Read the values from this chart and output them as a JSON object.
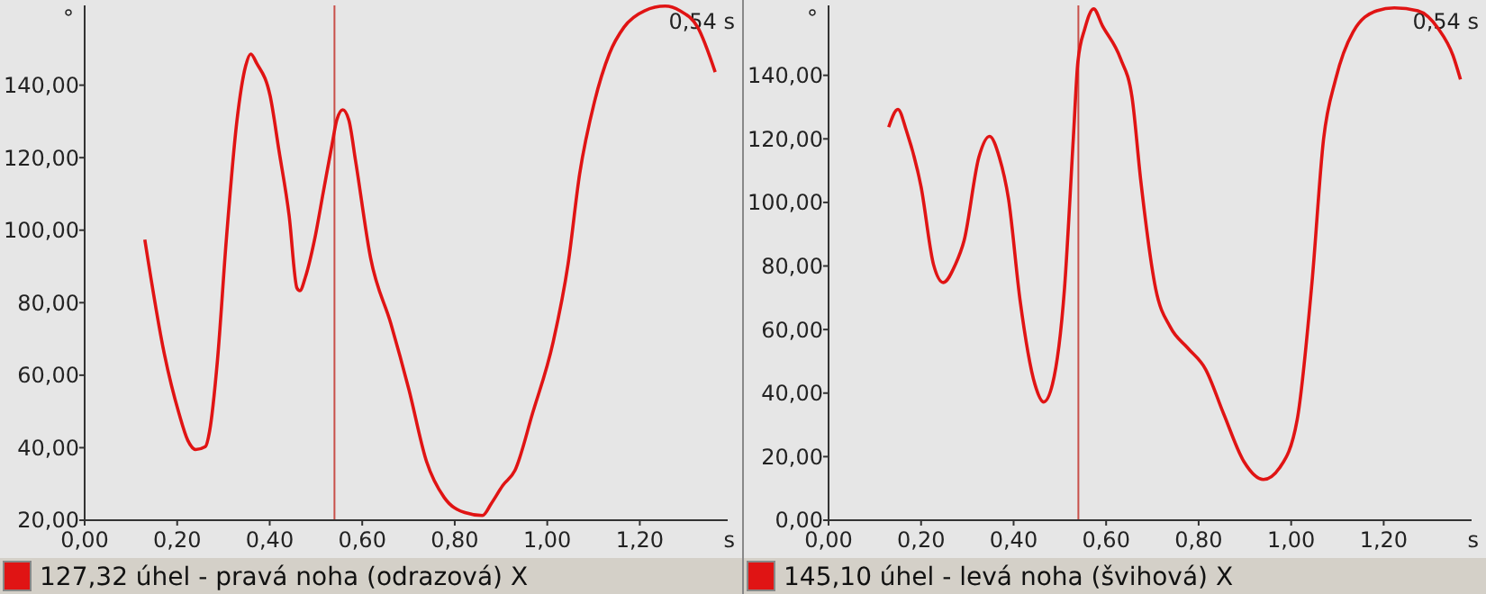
{
  "chart_data": [
    {
      "type": "line",
      "xlabel": "s",
      "ylabel": "°",
      "xlim": [
        0,
        1.39
      ],
      "ylim": [
        20,
        162
      ],
      "legend": "bottom",
      "grid": false,
      "marker": "none",
      "line_style": "solid",
      "xticks": [
        {
          "value": 0,
          "label": "0,00"
        },
        {
          "value": 0.2,
          "label": "0,20"
        },
        {
          "value": 0.4,
          "label": "0,40"
        },
        {
          "value": 0.6,
          "label": "0,60"
        },
        {
          "value": 0.8,
          "label": "0,80"
        },
        {
          "value": 1,
          "label": "1,00"
        },
        {
          "value": 1.2,
          "label": "1,20"
        }
      ],
      "yticks": [
        {
          "value": 20,
          "label": "20,00"
        },
        {
          "value": 40,
          "label": "40,00"
        },
        {
          "value": 60,
          "label": "60,00"
        },
        {
          "value": 80,
          "label": "80,00"
        },
        {
          "value": 100,
          "label": "100,00"
        },
        {
          "value": 120,
          "label": "120,00"
        },
        {
          "value": 140,
          "label": "140,00"
        }
      ],
      "ref_lines": [
        {
          "axis": "x",
          "value": 0.54,
          "color": "#c8504a"
        }
      ],
      "annotations": [
        "0,54 s"
      ],
      "x": [
        0.13,
        0.172,
        0.204,
        0.223,
        0.24,
        0.261,
        0.27,
        0.287,
        0.306,
        0.329,
        0.348,
        0.359,
        0.372,
        0.401,
        0.42,
        0.442,
        0.459,
        0.465,
        0.478,
        0.497,
        0.516,
        0.535,
        0.545,
        0.558,
        0.571,
        0.586,
        0.618,
        0.662,
        0.701,
        0.739,
        0.777,
        0.822,
        0.86,
        0.879,
        0.904,
        0.93,
        0.968,
        1.013,
        1.045,
        1.07,
        1.102,
        1.134,
        1.166,
        1.21,
        1.255,
        1.287,
        1.325,
        1.363
      ],
      "series": [
        {
          "name": "127,32 úhel - pravá noha (odrazová) X",
          "color": "#e01414",
          "values": [
            97.4,
            66,
            49.4,
            42,
            39.5,
            40.3,
            44.5,
            64,
            97,
            130,
            145.3,
            148.6,
            146,
            137,
            122,
            104,
            84,
            83.3,
            87.4,
            97.4,
            110.6,
            123.8,
            130.4,
            133.2,
            130.4,
            118.8,
            92.4,
            74.2,
            56,
            36.2,
            26.3,
            22.1,
            21.3,
            24.6,
            29.6,
            33.7,
            49.4,
            69.3,
            90.7,
            115.5,
            135.4,
            148.6,
            156,
            160.5,
            161.8,
            160.5,
            156,
            143.6
          ]
        }
      ]
    },
    {
      "type": "line",
      "xlabel": "s",
      "ylabel": "°",
      "xlim": [
        0,
        1.39
      ],
      "ylim": [
        0,
        162
      ],
      "legend": "bottom",
      "grid": false,
      "marker": "none",
      "line_style": "solid",
      "xticks": [
        {
          "value": 0,
          "label": "0,00"
        },
        {
          "value": 0.2,
          "label": "0,20"
        },
        {
          "value": 0.4,
          "label": "0,40"
        },
        {
          "value": 0.6,
          "label": "0,60"
        },
        {
          "value": 0.8,
          "label": "0,80"
        },
        {
          "value": 1,
          "label": "1,00"
        },
        {
          "value": 1.2,
          "label": "1,20"
        }
      ],
      "yticks": [
        {
          "value": 0,
          "label": "0,00"
        },
        {
          "value": 20,
          "label": "20,00"
        },
        {
          "value": 40,
          "label": "40,00"
        },
        {
          "value": 60,
          "label": "60,00"
        },
        {
          "value": 80,
          "label": "80,00"
        },
        {
          "value": 100,
          "label": "100,00"
        },
        {
          "value": 120,
          "label": "120,00"
        },
        {
          "value": 140,
          "label": "140,00"
        }
      ],
      "ref_lines": [
        {
          "axis": "x",
          "value": 0.54,
          "color": "#c8504a"
        }
      ],
      "annotations": [
        "0,54 s"
      ],
      "x": [
        0.13,
        0.15,
        0.168,
        0.2,
        0.227,
        0.248,
        0.274,
        0.293,
        0.325,
        0.348,
        0.369,
        0.389,
        0.414,
        0.446,
        0.465,
        0.484,
        0.51,
        0.529,
        0.539,
        0.554,
        0.573,
        0.592,
        0.631,
        0.656,
        0.675,
        0.707,
        0.739,
        0.777,
        0.815,
        0.854,
        0.898,
        0.94,
        0.975,
        1.013,
        1.045,
        1.07,
        1.096,
        1.134,
        1.185,
        1.223,
        1.274,
        1.318,
        1.35,
        1.366
      ],
      "series": [
        {
          "name": "145,10 úhel - levá noha (švihová) X",
          "color": "#e01414",
          "values": [
            123.7,
            129.3,
            122.7,
            104.9,
            80.4,
            74.8,
            80.4,
            88,
            114.3,
            120.8,
            114.3,
            101.1,
            69.2,
            42.8,
            37.2,
            42.8,
            72.9,
            119.9,
            144.3,
            154.7,
            160.9,
            155.6,
            145.3,
            133.1,
            106.7,
            72.9,
            60.7,
            54.1,
            47.5,
            33.5,
            18.4,
            12.8,
            16.5,
            31.6,
            74.8,
            119.9,
            138.7,
            153.7,
            160.3,
            161.2,
            160.3,
            154.7,
            146.2,
            138.7
          ]
        }
      ]
    }
  ]
}
